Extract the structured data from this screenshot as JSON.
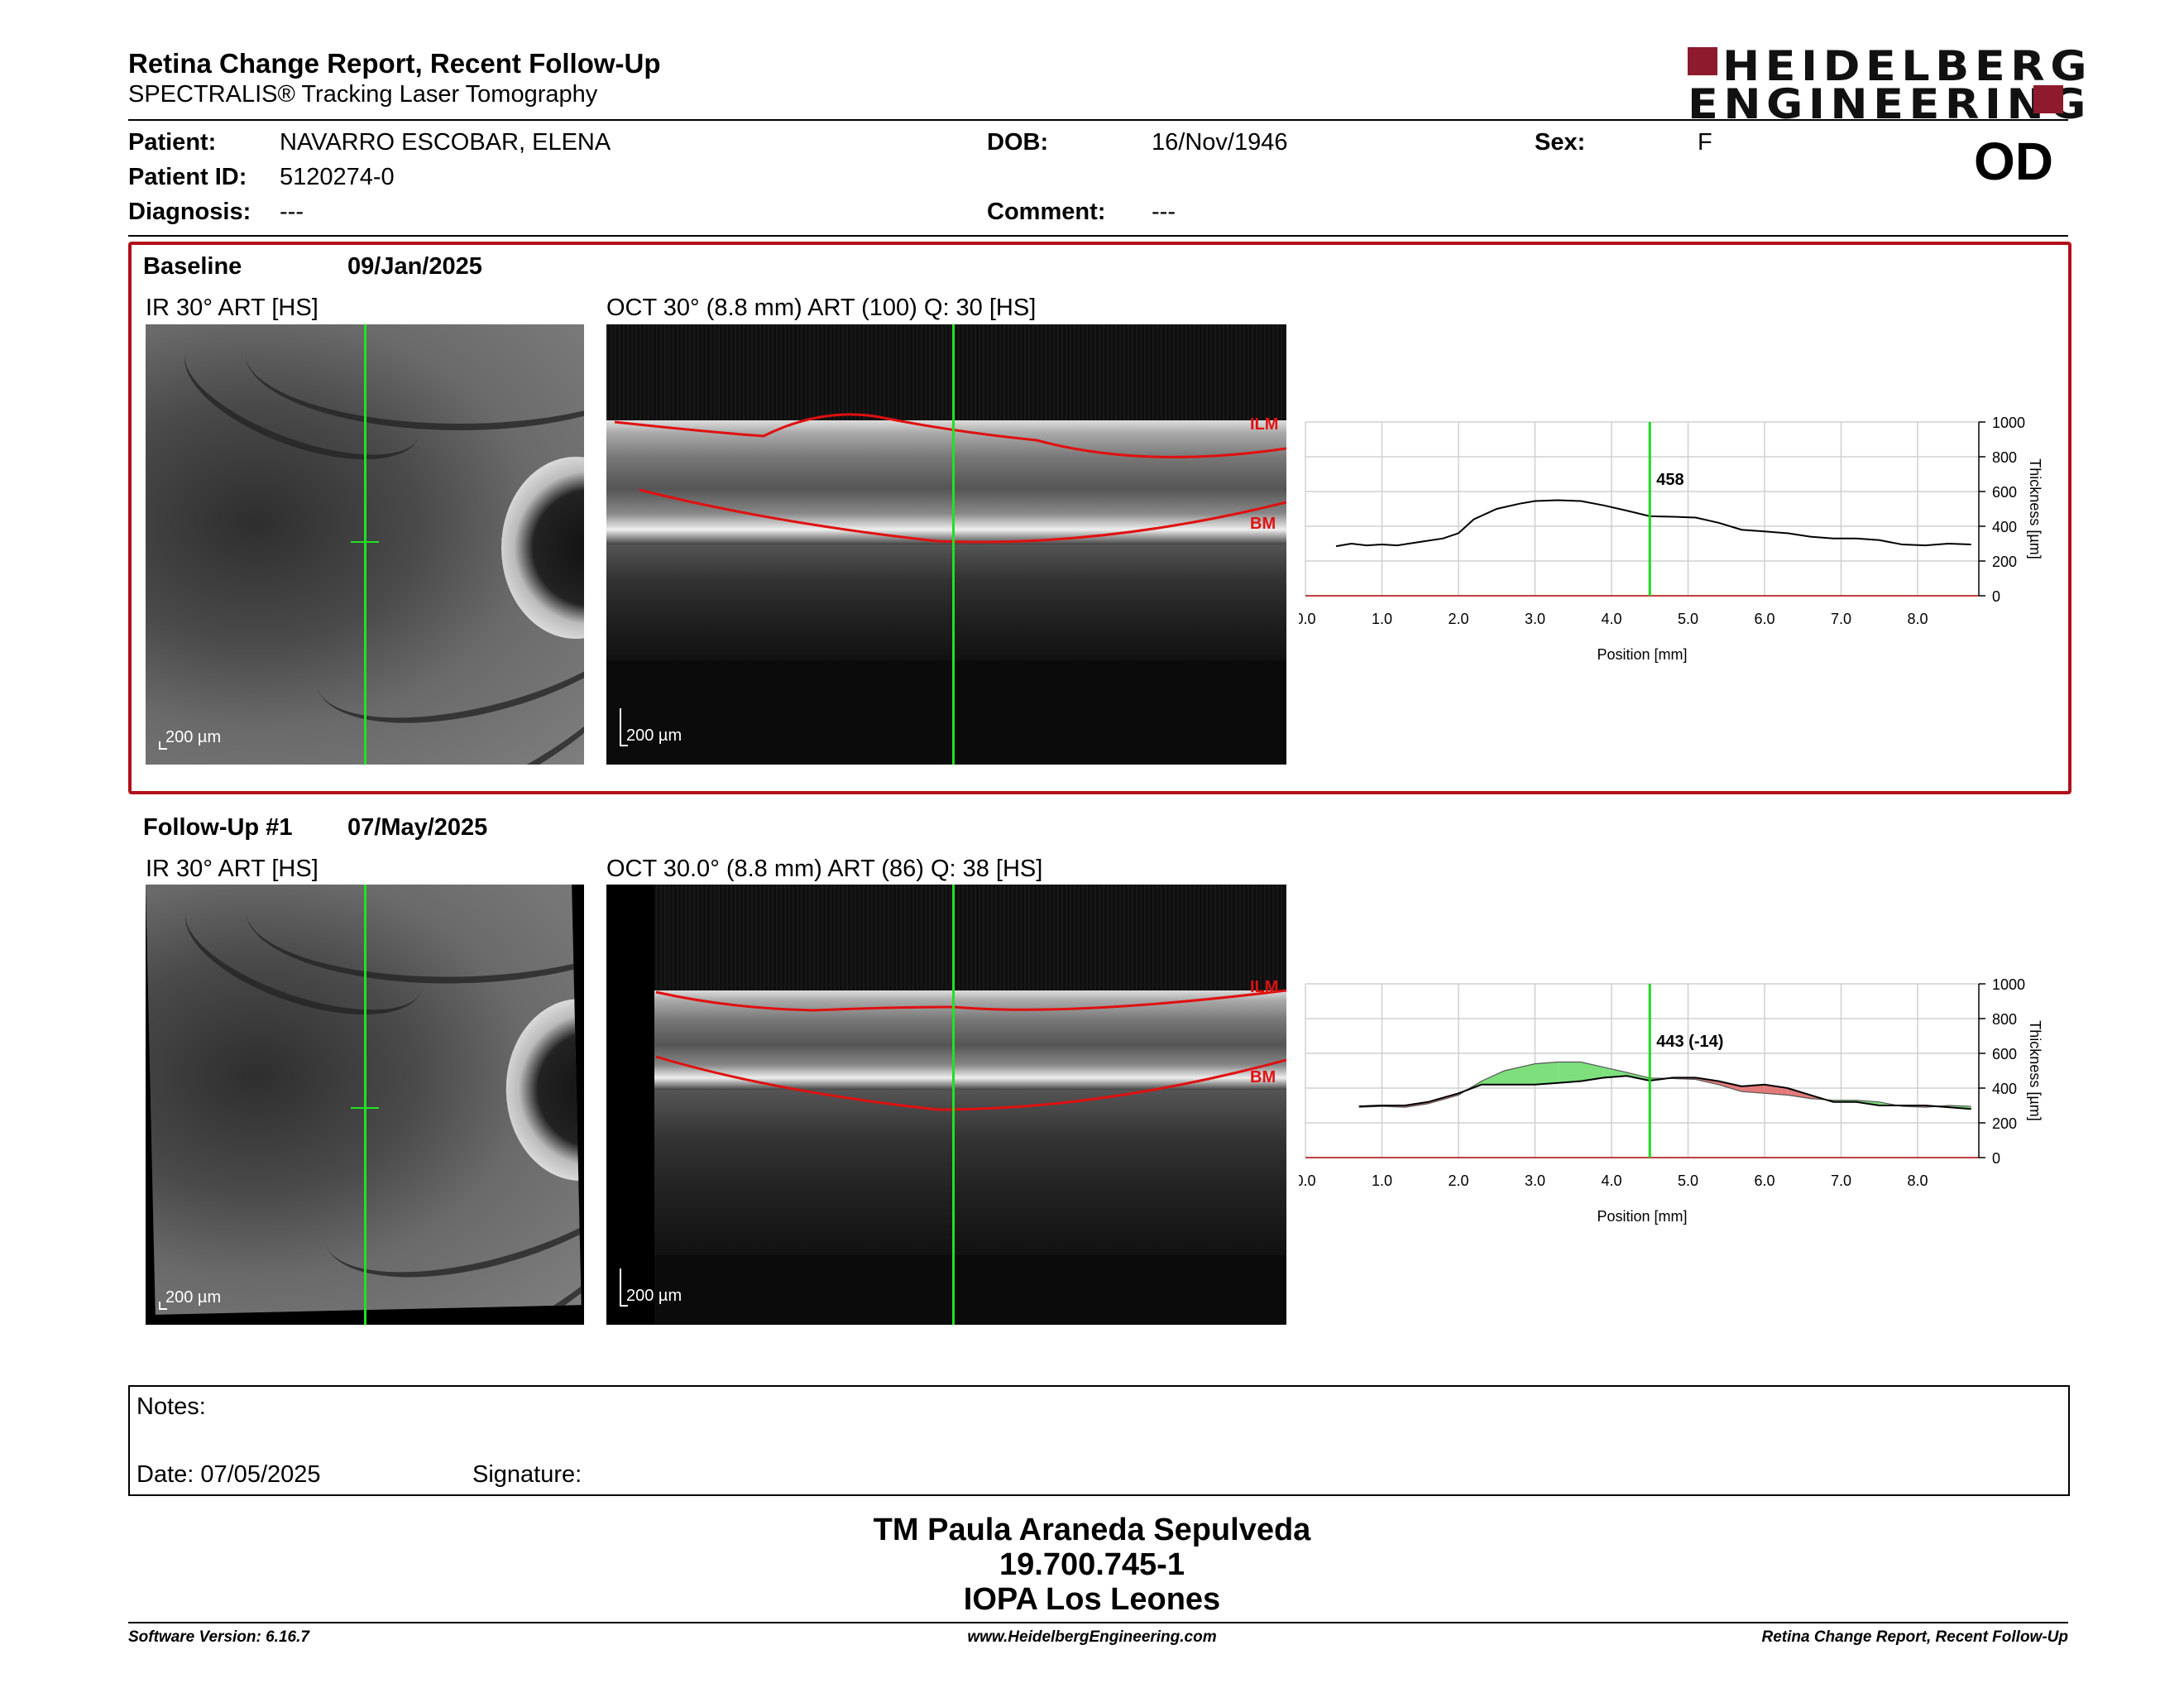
{
  "header": {
    "title": "Retina Change Report, Recent Follow-Up",
    "subtitle": "SPECTRALIS® Tracking Laser Tomography",
    "logo_line1": "HEIDELBERG",
    "logo_line2": "ENGINEERING",
    "eye": "OD",
    "colors": {
      "brand": "#8e1a2e",
      "panel_border": "#b10f1a"
    }
  },
  "patient": {
    "patient_label": "Patient:",
    "patient_value": "NAVARRO ESCOBAR, ELENA",
    "id_label": "Patient ID:",
    "id_value": "5120274-0",
    "diagnosis_label": "Diagnosis:",
    "diagnosis_value": "---",
    "dob_label": "DOB:",
    "dob_value": "16/Nov/1946",
    "comment_label": "Comment:",
    "comment_value": "---",
    "sex_label": "Sex:",
    "sex_value": "F"
  },
  "baseline": {
    "label": "Baseline",
    "date": "09/Jan/2025",
    "ir_title": "IR 30° ART [HS]",
    "oct_title": "OCT 30° (8.8 mm) ART (100) Q: 30 [HS]",
    "ir_scale": "200 µm",
    "oct_scale": "200 µm",
    "ilm": "ILM",
    "bm": "BM"
  },
  "followup": {
    "label": "Follow-Up #1",
    "date": "07/May/2025",
    "ir_title": "IR 30° ART [HS]",
    "oct_title": "OCT 30.0° (8.8 mm) ART (86) Q: 38 [HS]",
    "ir_scale": "200 µm",
    "oct_scale": "200 µm",
    "ilm": "ILM",
    "bm": "BM"
  },
  "chart_data": [
    {
      "type": "line",
      "xlabel": "Position [mm]",
      "ylabel": "Thickness [µm]",
      "xlim": [
        0,
        8.8
      ],
      "ylim": [
        0,
        1000
      ],
      "xticks": [
        "0.0",
        "1.0",
        "2.0",
        "3.0",
        "4.0",
        "5.0",
        "6.0",
        "7.0",
        "8.0"
      ],
      "yticks": [
        "0",
        "200",
        "400",
        "600",
        "800",
        "1000"
      ],
      "marker_x": 4.5,
      "marker_label": "458",
      "series": [
        {
          "x": [
            0.4,
            0.6,
            0.8,
            1.0,
            1.2,
            1.5,
            1.8,
            2.0,
            2.2,
            2.5,
            2.8,
            3.0,
            3.3,
            3.6,
            3.9,
            4.2,
            4.5,
            4.8,
            5.1,
            5.4,
            5.7,
            6.0,
            6.3,
            6.6,
            6.9,
            7.2,
            7.5,
            7.8,
            8.1,
            8.4,
            8.7
          ],
          "y": [
            285,
            300,
            290,
            295,
            290,
            310,
            330,
            360,
            440,
            500,
            530,
            545,
            550,
            545,
            520,
            490,
            458,
            455,
            450,
            420,
            380,
            370,
            360,
            340,
            330,
            330,
            320,
            295,
            290,
            300,
            295
          ]
        }
      ]
    },
    {
      "type": "area",
      "xlabel": "Position [mm]",
      "ylabel": "Thickness [µm]",
      "xlim": [
        0,
        8.8
      ],
      "ylim": [
        0,
        1000
      ],
      "xticks": [
        "0.0",
        "1.0",
        "2.0",
        "3.0",
        "4.0",
        "5.0",
        "6.0",
        "7.0",
        "8.0"
      ],
      "yticks": [
        "0",
        "200",
        "400",
        "600",
        "800",
        "1000"
      ],
      "marker_x": 4.5,
      "marker_label": "443 (-14)",
      "series": [
        {
          "name": "Follow-Up",
          "x": [
            0.7,
            1.0,
            1.3,
            1.6,
            2.0,
            2.3,
            2.6,
            3.0,
            3.3,
            3.6,
            3.9,
            4.2,
            4.5,
            4.8,
            5.1,
            5.4,
            5.7,
            6.0,
            6.3,
            6.6,
            6.9,
            7.2,
            7.5,
            7.8,
            8.1,
            8.4,
            8.7
          ],
          "y": [
            295,
            300,
            300,
            320,
            370,
            420,
            420,
            420,
            430,
            440,
            460,
            470,
            443,
            460,
            460,
            440,
            410,
            420,
            400,
            360,
            320,
            320,
            300,
            300,
            300,
            290,
            280
          ]
        },
        {
          "name": "Baseline",
          "x": [
            0.7,
            1.0,
            1.3,
            1.6,
            2.0,
            2.3,
            2.6,
            3.0,
            3.3,
            3.6,
            3.9,
            4.2,
            4.5,
            4.8,
            5.1,
            5.4,
            5.7,
            6.0,
            6.3,
            6.6,
            6.9,
            7.2,
            7.5,
            7.8,
            8.1,
            8.4,
            8.7
          ],
          "y": [
            290,
            295,
            290,
            310,
            360,
            440,
            500,
            540,
            550,
            550,
            520,
            490,
            458,
            455,
            450,
            420,
            380,
            370,
            360,
            340,
            330,
            330,
            320,
            295,
            290,
            300,
            295
          ]
        }
      ]
    }
  ],
  "notes": {
    "notes_label": "Notes:",
    "date_label": "Date: 07/05/2025",
    "signature_label": "Signature:"
  },
  "signature_block": {
    "name": "TM Paula Araneda Sepulveda",
    "rut": "19.700.745-1",
    "org": "IOPA Los Leones"
  },
  "footer": {
    "software": "Software Version: 6.16.7",
    "url": "www.HeidelbergEngineering.com",
    "report": "Retina Change Report, Recent Follow-Up"
  }
}
